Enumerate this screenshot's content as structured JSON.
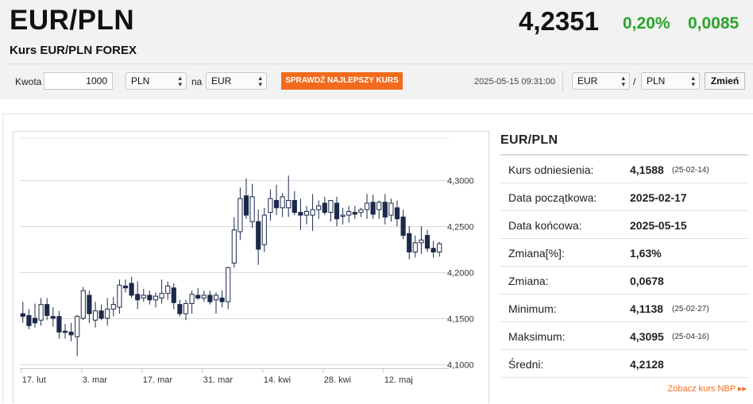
{
  "header": {
    "pair": "EUR/PLN",
    "subtitle": "Kurs EUR/PLN FOREX",
    "price": "4,2351",
    "change_pct": "0,20%",
    "change_abs": "0,0085",
    "change_color": "#2aa52a"
  },
  "converter": {
    "amount_label": "Kwota",
    "amount_value": "1000",
    "from_currency": "PLN",
    "to_label": "na",
    "to_currency": "EUR",
    "check_button": "SPRAWDŹ NAJLEPSZY KURS",
    "accent_color": "#f26b1d"
  },
  "pair_switch": {
    "timestamp": "2025-05-15 09:31:00",
    "base": "EUR",
    "separator": "/",
    "quote": "PLN",
    "change_button": "Zmień"
  },
  "stats": {
    "title": "EUR/PLN",
    "rows": [
      {
        "label": "Kurs odniesienia:",
        "value": "4,1588",
        "date": "(25-02-14)"
      },
      {
        "label": "Data początkowa:",
        "value": "2025-02-17",
        "date": ""
      },
      {
        "label": "Data końcowa:",
        "value": "2025-05-15",
        "date": ""
      },
      {
        "label": "Zmiana[%]:",
        "value": "1,63%",
        "date": ""
      },
      {
        "label": "Zmiana:",
        "value": "0,0678",
        "date": ""
      },
      {
        "label": "Minimum:",
        "value": "4,1138",
        "date": "(25-02-27)"
      },
      {
        "label": "Maksimum:",
        "value": "4,3095",
        "date": "(25-04-16)"
      },
      {
        "label": "Średni:",
        "value": "4,2128",
        "date": ""
      }
    ],
    "nbp_link": "Zobacz kurs NBP ▸▸"
  },
  "chart_data": {
    "type": "candlestick",
    "x_ticks": [
      "17. lut",
      "3. mar",
      "17. mar",
      "31. mar",
      "14. kwi",
      "28. kwi",
      "12. maj"
    ],
    "y_ticks": [
      "4,3000",
      "4,2500",
      "4,2000",
      "4,1500",
      "4,1000"
    ],
    "y_tick_values": [
      4.3,
      4.25,
      4.2,
      4.15,
      4.1
    ],
    "ylim": [
      4.1,
      4.32
    ],
    "grid": true,
    "up_color": "#ffffff",
    "down_color": "#1c2a4a",
    "candles": [
      {
        "o": 4.155,
        "h": 4.168,
        "l": 4.145,
        "c": 4.152
      },
      {
        "o": 4.153,
        "h": 4.16,
        "l": 4.138,
        "c": 4.142
      },
      {
        "o": 4.15,
        "h": 4.166,
        "l": 4.14,
        "c": 4.145
      },
      {
        "o": 4.148,
        "h": 4.172,
        "l": 4.142,
        "c": 4.165
      },
      {
        "o": 4.165,
        "h": 4.172,
        "l": 4.148,
        "c": 4.153
      },
      {
        "o": 4.152,
        "h": 4.162,
        "l": 4.141,
        "c": 4.15
      },
      {
        "o": 4.152,
        "h": 4.158,
        "l": 4.128,
        "c": 4.135
      },
      {
        "o": 4.136,
        "h": 4.144,
        "l": 4.128,
        "c": 4.135
      },
      {
        "o": 4.135,
        "h": 4.145,
        "l": 4.125,
        "c": 4.132
      },
      {
        "o": 4.13,
        "h": 4.154,
        "l": 4.109,
        "c": 4.152
      },
      {
        "o": 4.15,
        "h": 4.184,
        "l": 4.148,
        "c": 4.18
      },
      {
        "o": 4.175,
        "h": 4.18,
        "l": 4.145,
        "c": 4.155
      },
      {
        "o": 4.148,
        "h": 4.168,
        "l": 4.14,
        "c": 4.158
      },
      {
        "o": 4.158,
        "h": 4.165,
        "l": 4.148,
        "c": 4.15
      },
      {
        "o": 4.15,
        "h": 4.172,
        "l": 4.142,
        "c": 4.16
      },
      {
        "o": 4.16,
        "h": 4.173,
        "l": 4.152,
        "c": 4.165
      },
      {
        "o": 4.162,
        "h": 4.192,
        "l": 4.155,
        "c": 4.186
      },
      {
        "o": 4.185,
        "h": 4.192,
        "l": 4.178,
        "c": 4.183
      },
      {
        "o": 4.188,
        "h": 4.195,
        "l": 4.172,
        "c": 4.175
      },
      {
        "o": 4.176,
        "h": 4.19,
        "l": 4.16,
        "c": 4.17
      },
      {
        "o": 4.172,
        "h": 4.182,
        "l": 4.168,
        "c": 4.175
      },
      {
        "o": 4.175,
        "h": 4.18,
        "l": 4.165,
        "c": 4.17
      },
      {
        "o": 4.17,
        "h": 4.178,
        "l": 4.162,
        "c": 4.174
      },
      {
        "o": 4.172,
        "h": 4.192,
        "l": 4.166,
        "c": 4.177
      },
      {
        "o": 4.177,
        "h": 4.19,
        "l": 4.17,
        "c": 4.185
      },
      {
        "o": 4.183,
        "h": 4.188,
        "l": 4.16,
        "c": 4.167
      },
      {
        "o": 4.165,
        "h": 4.17,
        "l": 4.152,
        "c": 4.155
      },
      {
        "o": 4.155,
        "h": 4.17,
        "l": 4.148,
        "c": 4.166
      },
      {
        "o": 4.166,
        "h": 4.18,
        "l": 4.155,
        "c": 4.176
      },
      {
        "o": 4.175,
        "h": 4.183,
        "l": 4.17,
        "c": 4.172
      },
      {
        "o": 4.172,
        "h": 4.18,
        "l": 4.168,
        "c": 4.175
      },
      {
        "o": 4.175,
        "h": 4.18,
        "l": 4.165,
        "c": 4.168
      },
      {
        "o": 4.17,
        "h": 4.178,
        "l": 4.155,
        "c": 4.175
      },
      {
        "o": 4.172,
        "h": 4.18,
        "l": 4.162,
        "c": 4.168
      },
      {
        "o": 4.168,
        "h": 4.206,
        "l": 4.16,
        "c": 4.205
      },
      {
        "o": 4.21,
        "h": 4.26,
        "l": 4.205,
        "c": 4.246
      },
      {
        "o": 4.244,
        "h": 4.292,
        "l": 4.235,
        "c": 4.28
      },
      {
        "o": 4.283,
        "h": 4.302,
        "l": 4.258,
        "c": 4.262
      },
      {
        "o": 4.255,
        "h": 4.296,
        "l": 4.248,
        "c": 4.282
      },
      {
        "o": 4.255,
        "h": 4.268,
        "l": 4.208,
        "c": 4.225
      },
      {
        "o": 4.23,
        "h": 4.27,
        "l": 4.222,
        "c": 4.262
      },
      {
        "o": 4.265,
        "h": 4.29,
        "l": 4.256,
        "c": 4.28
      },
      {
        "o": 4.278,
        "h": 4.295,
        "l": 4.262,
        "c": 4.27
      },
      {
        "o": 4.27,
        "h": 4.286,
        "l": 4.26,
        "c": 4.282
      },
      {
        "o": 4.27,
        "h": 4.305,
        "l": 4.26,
        "c": 4.278
      },
      {
        "o": 4.278,
        "h": 4.288,
        "l": 4.262,
        "c": 4.265
      },
      {
        "o": 4.265,
        "h": 4.28,
        "l": 4.246,
        "c": 4.262
      },
      {
        "o": 4.262,
        "h": 4.272,
        "l": 4.252,
        "c": 4.266
      },
      {
        "o": 4.262,
        "h": 4.285,
        "l": 4.245,
        "c": 4.268
      },
      {
        "o": 4.268,
        "h": 4.278,
        "l": 4.258,
        "c": 4.272
      },
      {
        "o": 4.275,
        "h": 4.282,
        "l": 4.262,
        "c": 4.265
      },
      {
        "o": 4.265,
        "h": 4.278,
        "l": 4.255,
        "c": 4.278
      },
      {
        "o": 4.275,
        "h": 4.282,
        "l": 4.25,
        "c": 4.258
      },
      {
        "o": 4.262,
        "h": 4.27,
        "l": 4.252,
        "c": 4.262
      },
      {
        "o": 4.262,
        "h": 4.272,
        "l": 4.254,
        "c": 4.266
      },
      {
        "o": 4.265,
        "h": 4.272,
        "l": 4.258,
        "c": 4.263
      },
      {
        "o": 4.265,
        "h": 4.27,
        "l": 4.26,
        "c": 4.268
      },
      {
        "o": 4.268,
        "h": 4.285,
        "l": 4.258,
        "c": 4.275
      },
      {
        "o": 4.276,
        "h": 4.284,
        "l": 4.258,
        "c": 4.263
      },
      {
        "o": 4.268,
        "h": 4.278,
        "l": 4.258,
        "c": 4.276
      },
      {
        "o": 4.276,
        "h": 4.285,
        "l": 4.252,
        "c": 4.26
      },
      {
        "o": 4.262,
        "h": 4.28,
        "l": 4.255,
        "c": 4.275
      },
      {
        "o": 4.27,
        "h": 4.278,
        "l": 4.25,
        "c": 4.258
      },
      {
        "o": 4.26,
        "h": 4.268,
        "l": 4.236,
        "c": 4.24
      },
      {
        "o": 4.242,
        "h": 4.25,
        "l": 4.214,
        "c": 4.222
      },
      {
        "o": 4.222,
        "h": 4.24,
        "l": 4.216,
        "c": 4.232
      },
      {
        "o": 4.232,
        "h": 4.25,
        "l": 4.22,
        "c": 4.235
      },
      {
        "o": 4.24,
        "h": 4.246,
        "l": 4.222,
        "c": 4.226
      },
      {
        "o": 4.226,
        "h": 4.234,
        "l": 4.216,
        "c": 4.222
      },
      {
        "o": 4.222,
        "h": 4.233,
        "l": 4.217,
        "c": 4.231
      }
    ]
  }
}
